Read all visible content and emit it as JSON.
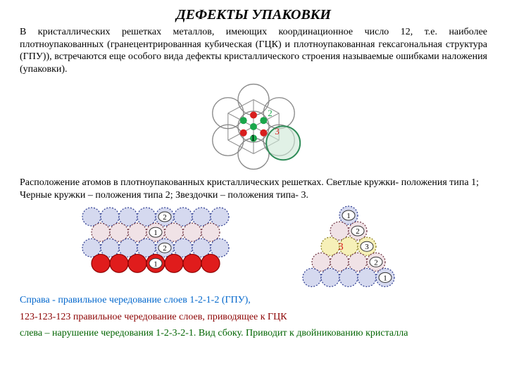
{
  "title": "ДЕФЕКТЫ УПАКОВКИ",
  "intro": "В кристаллических решетках металлов, имеющих координационное число 12, т.е. наиболее плотноупакованных (гранецентрированная кубическая (ГЦК) и плотноупакованная гексагональная структура (ГПУ)), встречаются еще особого вида дефекты кристаллического строения называемые ошибками наложения (упаковки).",
  "caption1": "Расположение атомов в плотноупакованных кристаллических решетках. Светлые кружки- положения типа 1; Черные кружки – положения типа 2; Звездочки – положения типа- 3.",
  "line_blue": "Справа - правильное чередование слоев 1-2-1-2 (ГПУ),",
  "line_red": "123-123-123 правильное чередование слоев, приводящее к ГЦК",
  "line_green": "слева – нарушение чередования 1-2-3-2-1. Вид сбоку. Приводит к двойникованию кристалла",
  "fig1": {
    "labels": {
      "one": "1",
      "two": "2",
      "three": "3"
    },
    "colors": {
      "outline": "#888888",
      "highlight_fill": "#cde8d6",
      "highlight_stroke": "#2e8b57",
      "green": "#1aa64b",
      "red": "#d81e1e",
      "text_green": "#1aa64b",
      "text_red": "#d81e1e"
    }
  },
  "fig2": {
    "labels": {
      "one": "1",
      "two": "2"
    },
    "colors": {
      "row1_fill": "#d5d9ef",
      "row1_stroke": "#2b3a8f",
      "row2_fill": "#f0e2e6",
      "row2_stroke": "#6b2f3d",
      "row4_fill": "#e01c1c",
      "row4_stroke": "#8b0000",
      "label_stroke": "#333"
    }
  },
  "fig3": {
    "labels": {
      "one": "1",
      "two": "2",
      "three": "3"
    },
    "overlay_three": "3",
    "colors": {
      "blue_fill": "#d5d9ef",
      "blue_stroke": "#2b3a8f",
      "pink_fill": "#f0e2e6",
      "pink_stroke": "#6b2f3d",
      "yellow_fill": "#f6f0b8",
      "yellow_stroke": "#8a7d1a",
      "overlay": "#d81e1e",
      "label_stroke": "#333"
    }
  }
}
